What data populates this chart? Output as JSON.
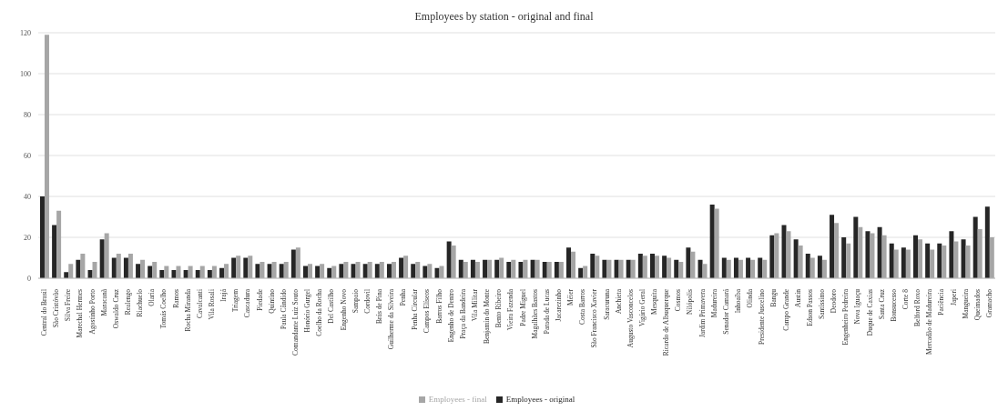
{
  "chart_data": {
    "type": "bar",
    "title": "Employees by station - original and final",
    "categories": [
      "Central do Brasil",
      "São Cristóvão",
      "Silva Freire",
      "Marechal Hermes",
      "Agostinho Porto",
      "Maracanã",
      "Oswaldo Cruz",
      "Realengo",
      "Riachuelo",
      "Olaria",
      "Tomás Coelho",
      "Ramos",
      "Rocha Miranda",
      "Cavalcanti",
      "Vila Rosali",
      "Irajá",
      "Triagem",
      "Cascadura",
      "Piedade",
      "Quintino",
      "Paula Cândido",
      "Comandante Luiz Souto",
      "Honório Gurgel",
      "Coelho da Rocha",
      "Del Castilho",
      "Engenho Novo",
      "Sampaio",
      "Cordovil",
      "Brás de Pina",
      "Guilherme da Silveira",
      "Penha",
      "Penha Circular",
      "Campos Elíseos",
      "Barros Filho",
      "Engenho de Dentro",
      "Praça da Bandeira",
      "Vila Militar",
      "Benjamin do Monte",
      "Bento Ribeiro",
      "Vieira Fazenda",
      "Padre Miguel",
      "Magalhães Bastos",
      "Parada de Lucas",
      "Jacarezinho",
      "Méier",
      "Costa Barros",
      "São Francisco Xavier",
      "Saracuruna",
      "Anchieta",
      "Augusto Vasconcelos",
      "Vigário Geral",
      "Mesquita",
      "Ricardo de Albuquerque",
      "Cosmos",
      "Nilópolis",
      "Jardim Primavera",
      "Madureira",
      "Senador Camará",
      "Inhoaíba",
      "Olinda",
      "Presidente Juscelino",
      "Bangu",
      "Campo Grande",
      "Austin",
      "Edson Passos",
      "Santíssimo",
      "Deodoro",
      "Engenheiro Pedreira",
      "Nova Iguaçu",
      "Duque de Caxias",
      "Santa Cruz",
      "Bonsucesso",
      "Corte 8",
      "Belford Roxo",
      "Mercadão de Madureira",
      "Paciência",
      "Japeri",
      "Mangueira",
      "Queimados",
      "Gramacho"
    ],
    "series": [
      {
        "name": "Employees - original",
        "color": "#262626",
        "values": [
          40,
          26,
          3,
          9,
          4,
          19,
          10,
          10,
          7,
          6,
          4,
          4,
          4,
          4,
          4,
          5,
          10,
          10,
          7,
          7,
          7,
          14,
          6,
          6,
          5,
          7,
          7,
          7,
          7,
          7,
          10,
          7,
          6,
          5,
          18,
          9,
          9,
          9,
          9,
          8,
          8,
          9,
          8,
          8,
          15,
          5,
          12,
          9,
          9,
          9,
          12,
          12,
          11,
          9,
          15,
          9,
          36,
          10,
          10,
          10,
          10,
          21,
          26,
          19,
          12,
          11,
          31,
          20,
          30,
          23,
          25,
          17,
          15,
          21,
          17,
          17,
          23,
          19,
          30,
          35
        ]
      },
      {
        "name": "Employees - final",
        "color": "#a6a6a6",
        "values": [
          119,
          33,
          7,
          12,
          8,
          22,
          12,
          12,
          9,
          8,
          6,
          6,
          6,
          6,
          6,
          7,
          11,
          11,
          8,
          8,
          8,
          15,
          7,
          7,
          6,
          8,
          8,
          8,
          8,
          8,
          11,
          8,
          7,
          6,
          16,
          8,
          8,
          9,
          10,
          9,
          9,
          9,
          8,
          8,
          13,
          6,
          11,
          9,
          9,
          9,
          11,
          11,
          10,
          8,
          13,
          7,
          34,
          9,
          9,
          9,
          9,
          22,
          23,
          16,
          10,
          9,
          27,
          17,
          25,
          22,
          21,
          14,
          14,
          19,
          14,
          16,
          18,
          16,
          24,
          20
        ]
      }
    ],
    "ylim": [
      0,
      120
    ],
    "yticks": [
      0,
      20,
      40,
      60,
      80,
      100,
      120
    ],
    "grid": "y",
    "legend": "bottom"
  }
}
